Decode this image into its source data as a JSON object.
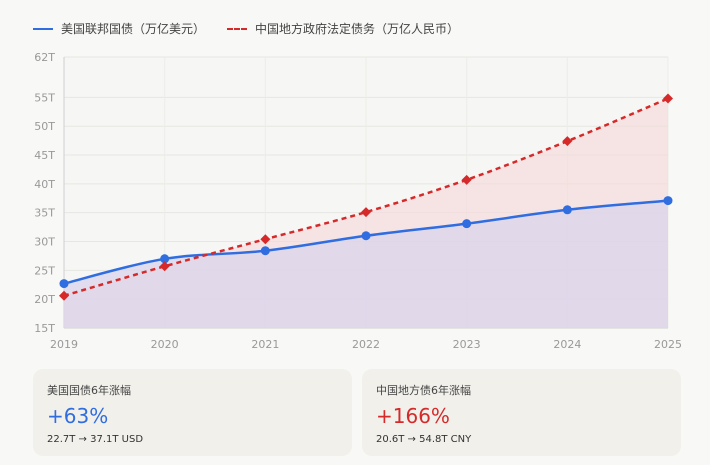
{
  "legend": {
    "us_label": "美国联邦国债（万亿美元）",
    "cn_label": "中国地方政府法定债务（万亿人民币）"
  },
  "colors": {
    "us": "#2f6de1",
    "cn": "#d62a2a",
    "us_fill": "#d9d4ec",
    "cn_fill": "#f5dada"
  },
  "chart_data": {
    "type": "line",
    "x": [
      "2019",
      "2020",
      "2021",
      "2022",
      "2023",
      "2024",
      "2025"
    ],
    "yticks": [
      15,
      20,
      25,
      30,
      35,
      40,
      45,
      50,
      55,
      62
    ],
    "ytick_labels": [
      "15T",
      "20T",
      "25T",
      "30T",
      "35T",
      "40T",
      "45T",
      "50T",
      "55T",
      "62T"
    ],
    "ylim": [
      15,
      62
    ],
    "grid": true,
    "legend": "top-left",
    "series": [
      {
        "name": "美国联邦国债（万亿美元）",
        "values": [
          22.7,
          27.0,
          28.4,
          31.0,
          33.1,
          35.5,
          37.1
        ],
        "marker": "circle",
        "style": "solid"
      },
      {
        "name": "中国地方政府法定债务（万亿人民币）",
        "values": [
          20.6,
          25.7,
          30.4,
          35.1,
          40.7,
          47.4,
          54.8
        ],
        "marker": "diamond",
        "style": "dashed"
      }
    ]
  },
  "cards": {
    "us": {
      "title": "美国国债6年涨幅",
      "value": "+63%",
      "sub": "22.7T → 37.1T USD"
    },
    "cn": {
      "title": "中国地方债6年涨幅",
      "value": "+166%",
      "sub": "20.6T → 54.8T CNY"
    }
  }
}
